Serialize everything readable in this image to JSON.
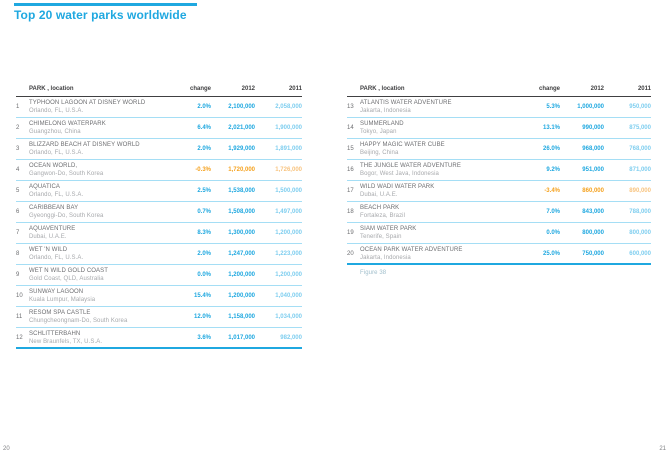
{
  "page": {
    "title": "Top 20 water parks worldwide",
    "figure_caption": "Figure 38",
    "left_page_number": "20",
    "right_page_number": "21"
  },
  "colors": {
    "accent": "#1FA8E0",
    "accent_light": "#7FCEEF",
    "negative": "#F5A21F",
    "negative_light": "#F8C480",
    "row_divider": "#A5DEF5"
  },
  "table": {
    "headers": {
      "park": "PARK , location",
      "change": "change",
      "y2012": "2012",
      "y2011": "2011"
    },
    "left_rows": [
      {
        "rank": "1",
        "name": "TYPHOON LAGOON AT DISNEY WORLD",
        "location": "Orlando, FL, U.S.A.",
        "change": "2.0%",
        "v2012": "2,100,000",
        "v2011": "2,058,000",
        "negative": false
      },
      {
        "rank": "2",
        "name": "CHIMELONG WATERPARK",
        "location": "Guangzhou, China",
        "change": "6.4%",
        "v2012": "2,021,000",
        "v2011": "1,900,000",
        "negative": false
      },
      {
        "rank": "3",
        "name": "BLIZZARD BEACH AT DISNEY WORLD",
        "location": "Orlando, FL, U.S.A.",
        "change": "2.0%",
        "v2012": "1,929,000",
        "v2011": "1,891,000",
        "negative": false
      },
      {
        "rank": "4",
        "name": "OCEAN WORLD,",
        "location": "Gangwon-Do, South Korea",
        "change": "-0.3%",
        "v2012": "1,720,000",
        "v2011": "1,726,000",
        "negative": true
      },
      {
        "rank": "5",
        "name": "AQUATICA",
        "location": "Orlando, FL, U.S.A.",
        "change": "2.5%",
        "v2012": "1,538,000",
        "v2011": "1,500,000",
        "negative": false
      },
      {
        "rank": "6",
        "name": "CARIBBEAN BAY",
        "location": "Gyeonggi-Do, South Korea",
        "change": "0.7%",
        "v2012": "1,508,000",
        "v2011": "1,497,000",
        "negative": false
      },
      {
        "rank": "7",
        "name": "AQUAVENTURE",
        "location": "Dubai, U.A.E.",
        "change": "8.3%",
        "v2012": "1,300,000",
        "v2011": "1,200,000",
        "negative": false
      },
      {
        "rank": "8",
        "name": "WET 'N WILD",
        "location": "Orlando, FL, U.S.A.",
        "change": "2.0%",
        "v2012": "1,247,000",
        "v2011": "1,223,000",
        "negative": false
      },
      {
        "rank": "9",
        "name": "WET N WILD GOLD COAST",
        "location": "Gold Coast, QLD, Australia",
        "change": "0.0%",
        "v2012": "1,200,000",
        "v2011": "1,200,000",
        "negative": false
      },
      {
        "rank": "10",
        "name": "SUNWAY LAGOON",
        "location": "Kuala Lumpur, Malaysia",
        "change": "15.4%",
        "v2012": "1,200,000",
        "v2011": "1,040,000",
        "negative": false
      },
      {
        "rank": "11",
        "name": "RESOM SPA CASTLE",
        "location": "Chungcheongnam-Do, South Korea",
        "change": "12.0%",
        "v2012": "1,158,000",
        "v2011": "1,034,000",
        "negative": false
      },
      {
        "rank": "12",
        "name": "SCHLITTERBAHN",
        "location": "New Braunfels, TX, U.S.A.",
        "change": "3.6%",
        "v2012": "1,017,000",
        "v2011": "982,000",
        "negative": false
      }
    ],
    "right_rows": [
      {
        "rank": "13",
        "name": "ATLANTIS WATER ADVENTURE",
        "location": "Jakarta, Indonesia",
        "change": "5.3%",
        "v2012": "1,000,000",
        "v2011": "950,000",
        "negative": false
      },
      {
        "rank": "14",
        "name": "SUMMERLAND",
        "location": "Tokyo, Japan",
        "change": "13.1%",
        "v2012": "990,000",
        "v2011": "875,000",
        "negative": false
      },
      {
        "rank": "15",
        "name": "HAPPY MAGIC WATER CUBE",
        "location": "Beijing, China",
        "change": "26.0%",
        "v2012": "968,000",
        "v2011": "768,000",
        "negative": false
      },
      {
        "rank": "16",
        "name": "THE JUNGLE WATER ADVENTURE",
        "location": "Bogor, West Java, Indonesia",
        "change": "9.2%",
        "v2012": "951,000",
        "v2011": "871,000",
        "negative": false
      },
      {
        "rank": "17",
        "name": "WILD WADI WATER PARK",
        "location": "Dubai, U.A.E.",
        "change": "-3.4%",
        "v2012": "860,000",
        "v2011": "890,000",
        "negative": true
      },
      {
        "rank": "18",
        "name": "BEACH PARK",
        "location": "Fortaleza, Brazil",
        "change": "7.0%",
        "v2012": "843,000",
        "v2011": "788,000",
        "negative": false
      },
      {
        "rank": "19",
        "name": "SIAM WATER PARK",
        "location": "Tenerife, Spain",
        "change": "0.0%",
        "v2012": "800,000",
        "v2011": "800,000",
        "negative": false
      },
      {
        "rank": "20",
        "name": "OCEAN PARK WATER ADVENTURE",
        "location": "Jakarta, Indonesia",
        "change": "25.0%",
        "v2012": "750,000",
        "v2011": "600,000",
        "negative": false
      }
    ]
  }
}
